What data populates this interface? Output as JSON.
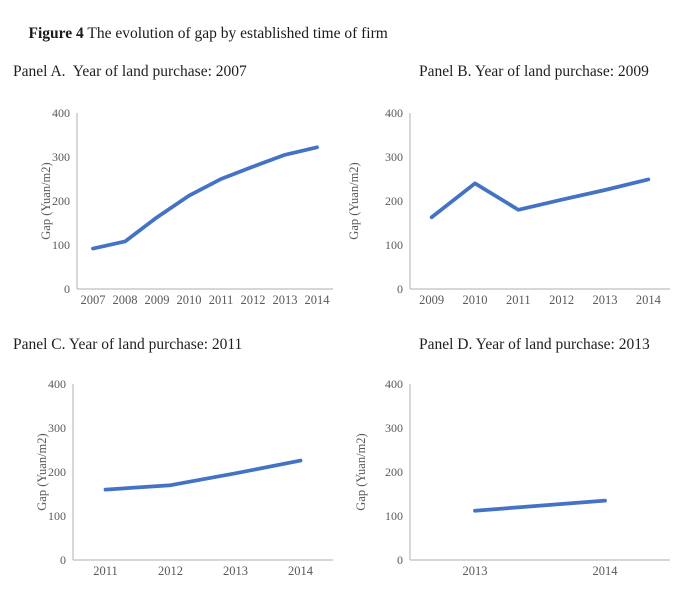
{
  "figure": {
    "label": "Figure 4",
    "caption": " The evolution of gap by established time of firm"
  },
  "colors": {
    "line": "#4472C4",
    "axis": "#BFBFBF",
    "tick_text": "#595959",
    "title_text": "#1F1F1F"
  },
  "chart_data": [
    {
      "type": "line",
      "title": "Panel A.  Year of land purchase: 2007",
      "categories": [
        "2007",
        "2008",
        "2009",
        "2010",
        "2011",
        "2012",
        "2013",
        "2014"
      ],
      "values": [
        92,
        108,
        163,
        212,
        250,
        278,
        305,
        322
      ],
      "xlabel": "",
      "ylabel": "Gap (Yuan/m2)",
      "ylim": [
        0,
        400
      ],
      "yticks": [
        0,
        100,
        200,
        300,
        400
      ],
      "grid": false,
      "legend": "none"
    },
    {
      "type": "line",
      "title": "Panel B. Year of land purchase: 2009",
      "categories": [
        "2009",
        "2010",
        "2011",
        "2012",
        "2013",
        "2014"
      ],
      "values": [
        163,
        240,
        180,
        203,
        225,
        249
      ],
      "xlabel": "",
      "ylabel": "Gap (Yuan/m2)",
      "ylim": [
        0,
        400
      ],
      "yticks": [
        0,
        100,
        200,
        300,
        400
      ],
      "grid": false,
      "legend": "none"
    },
    {
      "type": "line",
      "title": "Panel C. Year of land purchase: 2011",
      "categories": [
        "2011",
        "2012",
        "2013",
        "2014"
      ],
      "values": [
        160,
        170,
        197,
        226
      ],
      "xlabel": "",
      "ylabel": "Gap (Yuan/m2)",
      "ylim": [
        0,
        400
      ],
      "yticks": [
        0,
        100,
        200,
        300,
        400
      ],
      "grid": false,
      "legend": "none"
    },
    {
      "type": "line",
      "title": "Panel D. Year of land purchase: 2013",
      "categories": [
        "2013",
        "2014"
      ],
      "values": [
        112,
        135
      ],
      "xlabel": "",
      "ylabel": "Gap (Yuan/m2)",
      "ylim": [
        0,
        400
      ],
      "yticks": [
        0,
        100,
        200,
        300,
        400
      ],
      "grid": false,
      "legend": "none"
    }
  ]
}
